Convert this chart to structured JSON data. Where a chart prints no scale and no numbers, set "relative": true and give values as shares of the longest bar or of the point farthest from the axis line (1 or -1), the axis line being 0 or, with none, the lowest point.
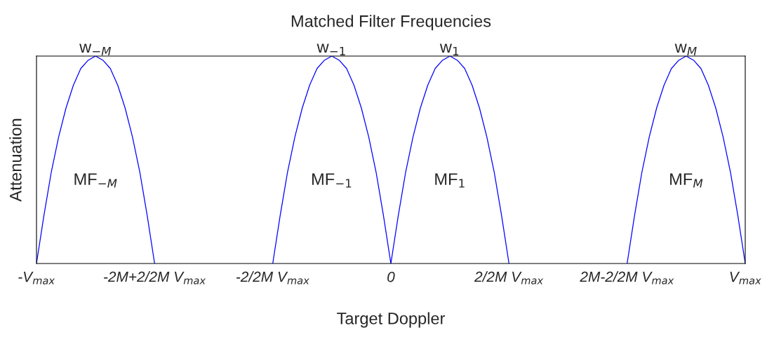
{
  "chart_data": {
    "type": "line",
    "title": "Matched Filter Frequencies",
    "xlabel": "Target Doppler",
    "ylabel": "Attenuation",
    "relative": true,
    "grid": false,
    "tick_labels": "x",
    "marker": "none",
    "line_style": "solid",
    "categories": [
      "-V$_{max}$",
      null,
      null,
      null,
      null,
      null,
      null,
      null,
      null,
      null,
      null,
      null,
      null,
      null,
      null,
      null,
      "-2M+2/2M V$_{max}$",
      null,
      null,
      null,
      null,
      null,
      null,
      null,
      null,
      null,
      null,
      null,
      null,
      null,
      null,
      null,
      "-2/2M V$_{max}$",
      null,
      null,
      null,
      null,
      null,
      null,
      null,
      null,
      null,
      null,
      null,
      null,
      null,
      null,
      null,
      "0",
      null,
      null,
      null,
      null,
      null,
      null,
      null,
      null,
      null,
      null,
      null,
      null,
      null,
      null,
      null,
      "2/2M V$_{max}$",
      null,
      null,
      null,
      null,
      null,
      null,
      null,
      null,
      null,
      null,
      null,
      null,
      null,
      null,
      null,
      "2M-2/2M V$_{max}$",
      null,
      null,
      null,
      null,
      null,
      null,
      null,
      null,
      null,
      null,
      null,
      null,
      null,
      null,
      null,
      "V$_{max}$"
    ],
    "series": [
      {
        "color": "#0000ff",
        "values": [
          0,
          0.23,
          0.44,
          0.61,
          0.75,
          0.86,
          0.94,
          0.98,
          1,
          0.98,
          0.94,
          0.86,
          0.75,
          0.61,
          0.44,
          0.23,
          0,
          null,
          null,
          null,
          null,
          null,
          null,
          null,
          null,
          null,
          null,
          null,
          null,
          null,
          null,
          null,
          null,
          null,
          null,
          null,
          null,
          null,
          null,
          null,
          null,
          null,
          null,
          null,
          null,
          null,
          null,
          null,
          null,
          null,
          null,
          null,
          null,
          null,
          null,
          null,
          null,
          null,
          null,
          null,
          null,
          null,
          null,
          null,
          null,
          null,
          null,
          null,
          null,
          null,
          null,
          null,
          null,
          null,
          null,
          null,
          null,
          null,
          null,
          null,
          null,
          null,
          null,
          null,
          null,
          null,
          null,
          null,
          null,
          null,
          null,
          null,
          null,
          null,
          null,
          null,
          null
        ]
      },
      {
        "color": "#0000ff",
        "values": [
          null,
          null,
          null,
          null,
          null,
          null,
          null,
          null,
          null,
          null,
          null,
          null,
          null,
          null,
          null,
          null,
          null,
          null,
          null,
          null,
          null,
          null,
          null,
          null,
          null,
          null,
          null,
          null,
          null,
          null,
          null,
          null,
          0,
          0.23,
          0.44,
          0.61,
          0.75,
          0.86,
          0.94,
          0.98,
          1,
          0.98,
          0.94,
          0.86,
          0.75,
          0.61,
          0.44,
          0.23,
          0,
          null,
          null,
          null,
          null,
          null,
          null,
          null,
          null,
          null,
          null,
          null,
          null,
          null,
          null,
          null,
          null,
          null,
          null,
          null,
          null,
          null,
          null,
          null,
          null,
          null,
          null,
          null,
          null,
          null,
          null,
          null,
          null,
          null,
          null,
          null,
          null,
          null,
          null,
          null,
          null,
          null,
          null,
          null,
          null,
          null,
          null,
          null,
          null
        ]
      },
      {
        "color": "#0000ff",
        "values": [
          null,
          null,
          null,
          null,
          null,
          null,
          null,
          null,
          null,
          null,
          null,
          null,
          null,
          null,
          null,
          null,
          null,
          null,
          null,
          null,
          null,
          null,
          null,
          null,
          null,
          null,
          null,
          null,
          null,
          null,
          null,
          null,
          null,
          null,
          null,
          null,
          null,
          null,
          null,
          null,
          null,
          null,
          null,
          null,
          null,
          null,
          null,
          null,
          0,
          0.23,
          0.44,
          0.61,
          0.75,
          0.86,
          0.94,
          0.98,
          1,
          0.98,
          0.94,
          0.86,
          0.75,
          0.61,
          0.44,
          0.23,
          0,
          null,
          null,
          null,
          null,
          null,
          null,
          null,
          null,
          null,
          null,
          null,
          null,
          null,
          null,
          null,
          null,
          null,
          null,
          null,
          null,
          null,
          null,
          null,
          null,
          null,
          null,
          null,
          null,
          null,
          null,
          null,
          null
        ]
      },
      {
        "color": "#0000ff",
        "values": [
          null,
          null,
          null,
          null,
          null,
          null,
          null,
          null,
          null,
          null,
          null,
          null,
          null,
          null,
          null,
          null,
          null,
          null,
          null,
          null,
          null,
          null,
          null,
          null,
          null,
          null,
          null,
          null,
          null,
          null,
          null,
          null,
          null,
          null,
          null,
          null,
          null,
          null,
          null,
          null,
          null,
          null,
          null,
          null,
          null,
          null,
          null,
          null,
          null,
          null,
          null,
          null,
          null,
          null,
          null,
          null,
          null,
          null,
          null,
          null,
          null,
          null,
          null,
          null,
          null,
          null,
          null,
          null,
          null,
          null,
          null,
          null,
          null,
          null,
          null,
          null,
          null,
          null,
          null,
          null,
          0,
          0.23,
          0.44,
          0.61,
          0.75,
          0.86,
          0.94,
          0.98,
          1,
          0.98,
          0.94,
          0.86,
          0.75,
          0.61,
          0.44,
          0.23,
          0
        ]
      }
    ],
    "annotations": [
      "w$_{−M}$",
      "w$_{−1}$",
      "w$_{1}$",
      "w$_{M}$",
      "MF$_{−M}$",
      "MF$_{−1}$",
      "MF$_{1}$",
      "MF$_{M}$"
    ]
  }
}
